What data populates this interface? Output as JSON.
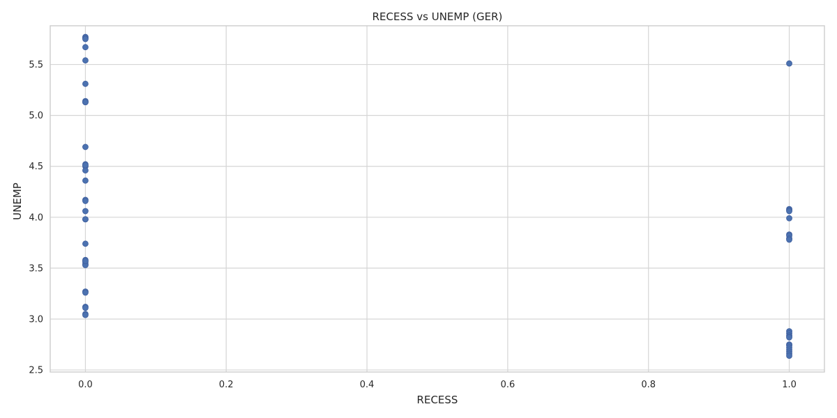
{
  "chart_data": {
    "type": "scatter",
    "title": "RECESS vs UNEMP (GER)",
    "xlabel": "RECESS",
    "ylabel": "UNEMP",
    "xlim": [
      -0.05,
      1.05
    ],
    "ylim": [
      2.48,
      5.88
    ],
    "xticks": [
      0.0,
      0.2,
      0.4,
      0.6,
      0.8,
      1.0
    ],
    "xtick_labels": [
      "0.0",
      "0.2",
      "0.4",
      "0.6",
      "0.8",
      "1.0"
    ],
    "yticks": [
      2.5,
      3.0,
      3.5,
      4.0,
      4.5,
      5.0,
      5.5
    ],
    "ytick_labels": [
      "2.5",
      "3.0",
      "3.5",
      "4.0",
      "4.5",
      "5.0",
      "5.5"
    ],
    "grid": true,
    "color": "#4c72b0",
    "series": [
      {
        "x": [
          0,
          0,
          0,
          0,
          0,
          0,
          0,
          0,
          0,
          0,
          0,
          0,
          0,
          0,
          0,
          0,
          0,
          0,
          0,
          0,
          0,
          0,
          0,
          0,
          0,
          0,
          0,
          0,
          0,
          0,
          0,
          0,
          1,
          1,
          1,
          1,
          1,
          1,
          1,
          1,
          1,
          1,
          1,
          1,
          1,
          1,
          1,
          1,
          1,
          1,
          1,
          1,
          1
        ],
        "y": [
          5.77,
          5.76,
          5.75,
          5.67,
          5.54,
          5.31,
          5.14,
          5.13,
          4.69,
          4.52,
          4.5,
          4.46,
          4.36,
          4.17,
          4.16,
          4.06,
          3.98,
          3.74,
          3.58,
          3.56,
          3.54,
          3.53,
          3.27,
          3.26,
          3.12,
          3.11,
          3.05,
          3.04,
          5.13,
          4.51,
          3.98,
          3.57,
          5.51,
          4.08,
          4.07,
          4.06,
          3.99,
          3.83,
          3.82,
          3.79,
          3.78,
          2.88,
          2.86,
          2.84,
          2.83,
          2.82,
          2.75,
          2.74,
          2.72,
          2.7,
          2.68,
          2.66,
          2.64
        ]
      }
    ]
  }
}
